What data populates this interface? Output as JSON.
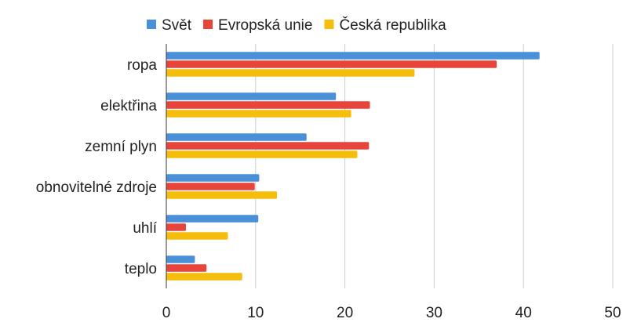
{
  "chart_data": {
    "type": "bar",
    "orientation": "horizontal",
    "categories": [
      "ropa",
      "elektřina",
      "zemní plyn",
      "obnovitelné zdroje",
      "uhlí",
      "teplo"
    ],
    "series": [
      {
        "name": "Svět",
        "color": "#4a90d9",
        "values": [
          41.8,
          19.0,
          15.7,
          10.4,
          10.3,
          3.2
        ]
      },
      {
        "name": "Evropská unie",
        "color": "#e8443a",
        "values": [
          37.0,
          22.8,
          22.7,
          9.9,
          2.2,
          4.5
        ]
      },
      {
        "name": "Česká republika",
        "color": "#f5bd0c",
        "values": [
          27.8,
          20.7,
          21.4,
          12.4,
          6.9,
          8.5
        ]
      }
    ],
    "xlim": [
      0,
      50
    ],
    "xticks": [
      0,
      10,
      20,
      30,
      40,
      50
    ],
    "grid": true,
    "legend_position": "top"
  }
}
